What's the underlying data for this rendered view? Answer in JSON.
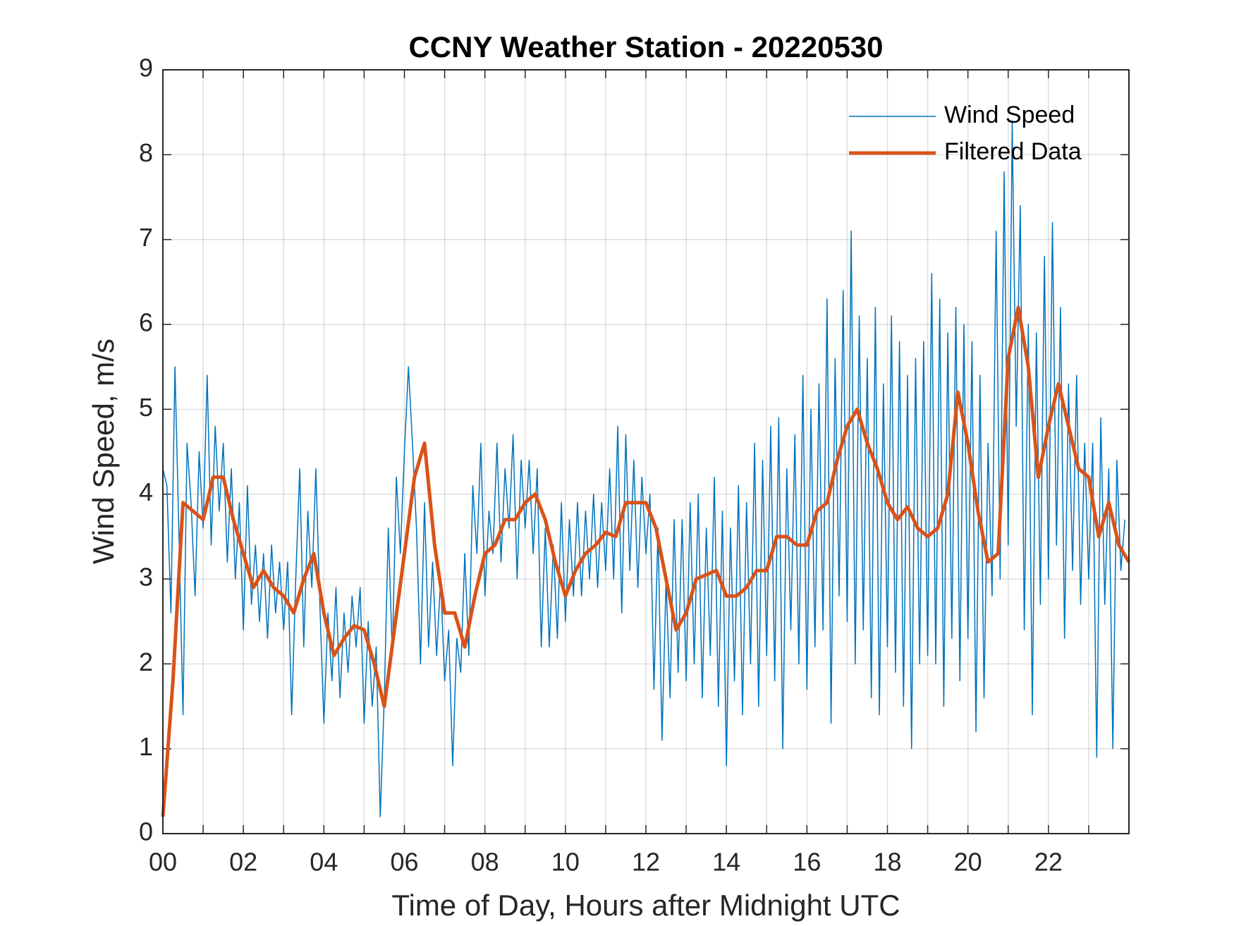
{
  "chart_data": {
    "type": "line",
    "title": "CCNY Weather Station - 20220530",
    "x_label": "Time of Day, Hours after Midnight UTC",
    "y_label": "Wind Speed, m/s",
    "xlim": [
      0,
      24
    ],
    "ylim": [
      0,
      9
    ],
    "xticks": [
      {
        "value": 0,
        "label": "00"
      },
      {
        "value": 2,
        "label": "02"
      },
      {
        "value": 4,
        "label": "04"
      },
      {
        "value": 6,
        "label": "06"
      },
      {
        "value": 8,
        "label": "08"
      },
      {
        "value": 10,
        "label": "10"
      },
      {
        "value": 12,
        "label": "12"
      },
      {
        "value": 14,
        "label": "14"
      },
      {
        "value": 16,
        "label": "16"
      },
      {
        "value": 18,
        "label": "18"
      },
      {
        "value": 20,
        "label": "20"
      },
      {
        "value": 22,
        "label": "22"
      }
    ],
    "xminorticks": [
      1,
      3,
      5,
      7,
      9,
      11,
      13,
      15,
      17,
      19,
      21,
      23
    ],
    "yticks": [
      0,
      1,
      2,
      3,
      4,
      5,
      6,
      7,
      8,
      9
    ],
    "grid": true,
    "legend": "northeast",
    "series": [
      {
        "name": "Wind Speed",
        "color": "#0072BD",
        "width": 1.5,
        "x": [
          0,
          0.1,
          0.2,
          0.3,
          0.4,
          0.5,
          0.6,
          0.7,
          0.8,
          0.9,
          1,
          1.1,
          1.2,
          1.3,
          1.4,
          1.5,
          1.6,
          1.7,
          1.8,
          1.9,
          2,
          2.1,
          2.2,
          2.3,
          2.4,
          2.5,
          2.6,
          2.7,
          2.8,
          2.9,
          3,
          3.1,
          3.2,
          3.3,
          3.4,
          3.5,
          3.6,
          3.7,
          3.8,
          3.9,
          4,
          4.1,
          4.2,
          4.3,
          4.4,
          4.5,
          4.6,
          4.7,
          4.8,
          4.9,
          5,
          5.1,
          5.2,
          5.3,
          5.4,
          5.5,
          5.6,
          5.7,
          5.8,
          5.9,
          6,
          6.1,
          6.2,
          6.3,
          6.4,
          6.5,
          6.6,
          6.7,
          6.8,
          6.9,
          7,
          7.1,
          7.2,
          7.3,
          7.4,
          7.5,
          7.6,
          7.7,
          7.8,
          7.9,
          8,
          8.1,
          8.2,
          8.3,
          8.4,
          8.5,
          8.6,
          8.7,
          8.8,
          8.9,
          9,
          9.1,
          9.2,
          9.3,
          9.4,
          9.5,
          9.6,
          9.7,
          9.8,
          9.9,
          10,
          10.1,
          10.2,
          10.3,
          10.4,
          10.5,
          10.6,
          10.7,
          10.8,
          10.9,
          11,
          11.1,
          11.2,
          11.3,
          11.4,
          11.5,
          11.6,
          11.7,
          11.8,
          11.9,
          12,
          12.1,
          12.2,
          12.3,
          12.4,
          12.5,
          12.6,
          12.7,
          12.8,
          12.9,
          13,
          13.1,
          13.2,
          13.3,
          13.4,
          13.5,
          13.6,
          13.7,
          13.8,
          13.9,
          14,
          14.1,
          14.2,
          14.3,
          14.4,
          14.5,
          14.6,
          14.7,
          14.8,
          14.9,
          15,
          15.1,
          15.2,
          15.3,
          15.4,
          15.5,
          15.6,
          15.7,
          15.8,
          15.9,
          16,
          16.1,
          16.2,
          16.3,
          16.4,
          16.5,
          16.6,
          16.7,
          16.8,
          16.9,
          17,
          17.1,
          17.2,
          17.3,
          17.4,
          17.5,
          17.6,
          17.7,
          17.8,
          17.9,
          18,
          18.1,
          18.2,
          18.3,
          18.4,
          18.5,
          18.6,
          18.7,
          18.8,
          18.9,
          19,
          19.1,
          19.2,
          19.3,
          19.4,
          19.5,
          19.6,
          19.7,
          19.8,
          19.9,
          20,
          20.1,
          20.2,
          20.3,
          20.4,
          20.5,
          20.6,
          20.7,
          20.8,
          20.9,
          21,
          21.1,
          21.2,
          21.3,
          21.4,
          21.5,
          21.6,
          21.7,
          21.8,
          21.9,
          22,
          22.1,
          22.2,
          22.3,
          22.4,
          22.5,
          22.6,
          22.7,
          22.8,
          22.9,
          23,
          23.1,
          23.2,
          23.3,
          23.4,
          23.5,
          23.6,
          23.7,
          23.8,
          23.9
        ],
        "values": [
          4.3,
          4.1,
          2.6,
          5.5,
          3.5,
          1.4,
          4.6,
          3.9,
          2.8,
          4.5,
          3.6,
          5.4,
          3.4,
          4.8,
          3.8,
          4.6,
          3.2,
          4.3,
          3.0,
          3.9,
          2.4,
          4.1,
          2.7,
          3.4,
          2.5,
          3.3,
          2.3,
          3.4,
          2.6,
          3.2,
          2.4,
          3.2,
          1.4,
          3.0,
          4.3,
          2.2,
          3.8,
          2.9,
          4.3,
          2.7,
          1.3,
          2.6,
          1.8,
          2.9,
          1.6,
          2.6,
          1.9,
          2.8,
          2.2,
          2.9,
          1.3,
          2.5,
          1.5,
          2.2,
          0.2,
          1.6,
          3.6,
          2.1,
          4.2,
          3.3,
          4.5,
          5.5,
          4.6,
          3.6,
          2.0,
          3.9,
          2.2,
          3.2,
          2.1,
          3.0,
          1.8,
          2.4,
          0.8,
          2.3,
          1.9,
          3.3,
          2.1,
          4.1,
          3.3,
          4.6,
          2.8,
          3.8,
          3.3,
          4.6,
          3.2,
          4.3,
          3.6,
          4.7,
          3.0,
          4.4,
          3.6,
          4.4,
          3.3,
          4.3,
          2.2,
          3.6,
          2.2,
          3.4,
          2.3,
          3.9,
          2.5,
          3.7,
          2.8,
          3.9,
          2.8,
          3.8,
          3.0,
          4.0,
          2.9,
          3.9,
          3.1,
          4.3,
          3.0,
          4.8,
          2.6,
          4.7,
          3.1,
          4.4,
          2.9,
          4.2,
          3.3,
          4.0,
          1.7,
          3.6,
          1.1,
          3.0,
          1.6,
          3.7,
          1.9,
          3.7,
          1.8,
          3.9,
          2.0,
          4.0,
          1.6,
          3.6,
          2.1,
          4.2,
          1.5,
          3.8,
          0.8,
          3.6,
          1.8,
          4.1,
          1.4,
          3.9,
          2.0,
          4.6,
          1.5,
          4.4,
          2.1,
          4.8,
          1.8,
          4.9,
          1.0,
          4.3,
          2.4,
          4.7,
          2.0,
          5.4,
          1.7,
          5.0,
          2.2,
          5.3,
          2.4,
          6.3,
          1.3,
          5.6,
          2.8,
          6.4,
          2.5,
          7.1,
          2.0,
          6.1,
          2.4,
          5.6,
          1.6,
          6.2,
          1.4,
          5.3,
          2.2,
          6.1,
          1.9,
          5.8,
          1.5,
          5.4,
          1.0,
          5.6,
          2.0,
          5.8,
          2.1,
          6.6,
          2.0,
          6.3,
          1.5,
          5.9,
          2.3,
          6.2,
          1.8,
          6.0,
          2.3,
          5.8,
          1.2,
          5.4,
          1.6,
          4.6,
          2.8,
          7.1,
          3.0,
          7.8,
          3.4,
          8.4,
          4.8,
          7.4,
          2.4,
          6.0,
          1.4,
          5.9,
          2.7,
          6.8,
          3.0,
          7.2,
          3.4,
          6.2,
          2.3,
          5.3,
          3.1,
          5.4,
          2.7,
          4.6,
          3.0,
          4.6,
          0.9,
          4.9,
          2.7,
          4.3,
          1.0,
          4.4,
          3.1,
          3.7
        ]
      },
      {
        "name": "Filtered Data",
        "color": "#D95319",
        "width": 5,
        "x": [
          0,
          0.25,
          0.5,
          0.75,
          1,
          1.25,
          1.5,
          1.75,
          2,
          2.25,
          2.5,
          2.75,
          3,
          3.25,
          3.5,
          3.75,
          4,
          4.25,
          4.5,
          4.75,
          5,
          5.25,
          5.5,
          5.75,
          6,
          6.25,
          6.5,
          6.75,
          7,
          7.25,
          7.5,
          7.75,
          8,
          8.25,
          8.5,
          8.75,
          9,
          9.25,
          9.5,
          9.75,
          10,
          10.25,
          10.5,
          10.75,
          11,
          11.25,
          11.5,
          11.75,
          12,
          12.25,
          12.5,
          12.75,
          13,
          13.25,
          13.5,
          13.75,
          14,
          14.25,
          14.5,
          14.75,
          15,
          15.25,
          15.5,
          15.75,
          16,
          16.25,
          16.5,
          16.75,
          17,
          17.25,
          17.5,
          17.75,
          18,
          18.25,
          18.5,
          18.75,
          19,
          19.25,
          19.5,
          19.75,
          20,
          20.25,
          20.5,
          20.75,
          21,
          21.25,
          21.5,
          21.75,
          22,
          22.25,
          22.5,
          22.75,
          23,
          23.25,
          23.5,
          23.75,
          24
        ],
        "values": [
          0.2,
          1.8,
          3.9,
          3.8,
          3.7,
          4.2,
          4.2,
          3.7,
          3.3,
          2.9,
          3.1,
          2.9,
          2.8,
          2.6,
          3.0,
          3.3,
          2.6,
          2.1,
          2.3,
          2.45,
          2.4,
          2.0,
          1.5,
          2.4,
          3.3,
          4.2,
          4.6,
          3.4,
          2.6,
          2.6,
          2.2,
          2.8,
          3.3,
          3.4,
          3.7,
          3.7,
          3.9,
          4.0,
          3.7,
          3.2,
          2.8,
          3.1,
          3.3,
          3.4,
          3.55,
          3.5,
          3.9,
          3.9,
          3.9,
          3.6,
          3.0,
          2.4,
          2.6,
          3.0,
          3.05,
          3.1,
          2.8,
          2.8,
          2.9,
          3.1,
          3.1,
          3.5,
          3.5,
          3.4,
          3.4,
          3.8,
          3.9,
          4.4,
          4.8,
          5.0,
          4.6,
          4.3,
          3.9,
          3.7,
          3.85,
          3.6,
          3.5,
          3.6,
          4.0,
          5.2,
          4.6,
          3.8,
          3.2,
          3.3,
          5.6,
          6.2,
          5.5,
          4.2,
          4.8,
          5.3,
          4.8,
          4.3,
          4.2,
          3.5,
          3.9,
          3.4,
          3.2
        ]
      }
    ]
  }
}
